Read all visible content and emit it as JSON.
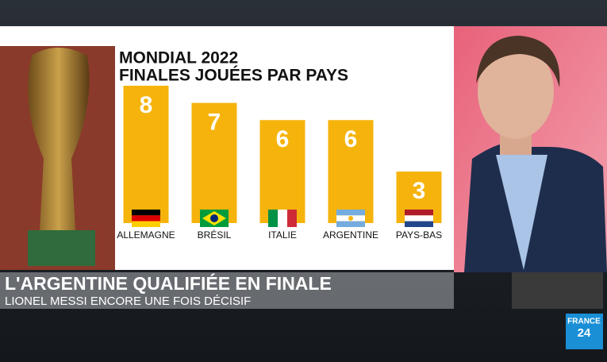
{
  "chart_data": {
    "type": "bar",
    "title": "MONDIAL 2022",
    "subtitle": "FINALES JOUÉES PAR PAYS",
    "categories": [
      "ALLEMAGNE",
      "BRÉSIL",
      "ITALIE",
      "ARGENTINE",
      "PAYS-BAS"
    ],
    "values": [
      8,
      7,
      6,
      6,
      3
    ],
    "color": "#f5b30c"
  },
  "banner": {
    "headline": "L'ARGENTINE QUALIFIÉE EN FINALE",
    "subline": "LIONEL MESSI ENCORE UNE FOIS DÉCISIF"
  },
  "logo": {
    "line1": "FRANCE",
    "line2": "24"
  }
}
